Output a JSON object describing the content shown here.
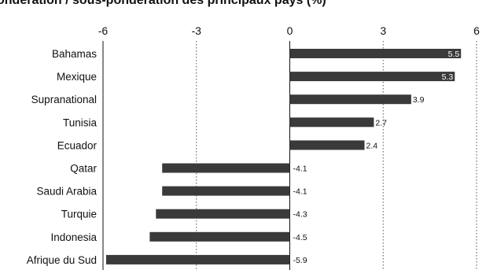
{
  "chart_data": {
    "type": "bar",
    "orientation": "horizontal",
    "title": "ondération / sous-pondération des principaux pays (%)",
    "xlabel": "",
    "ylabel": "",
    "xlim": [
      -6,
      6
    ],
    "xticks": [
      "-6",
      "-3",
      "0",
      "3",
      "6"
    ],
    "grid": "vertical dotted",
    "categories": [
      "Bahamas",
      "Mexique",
      "Supranational",
      "Tunisia",
      "Ecuador",
      "Qatar",
      "Saudi Arabia",
      "Turquie",
      "Indonesia",
      "Afrique du Sud"
    ],
    "values": [
      5.5,
      5.3,
      3.9,
      2.7,
      2.4,
      -4.1,
      -4.1,
      -4.3,
      -4.5,
      -5.9
    ],
    "value_labels": [
      "5.5",
      "5.3",
      "3.9",
      "2.7",
      "2.4",
      "-4.1",
      "-4.1",
      "-4.3",
      "-4.5",
      "-5.9"
    ],
    "colors": {
      "bar": "#3a3a3a",
      "label_inside": "#ffffff",
      "label_outside": "#111111",
      "axis": "#111111",
      "grid": "#555555"
    }
  }
}
